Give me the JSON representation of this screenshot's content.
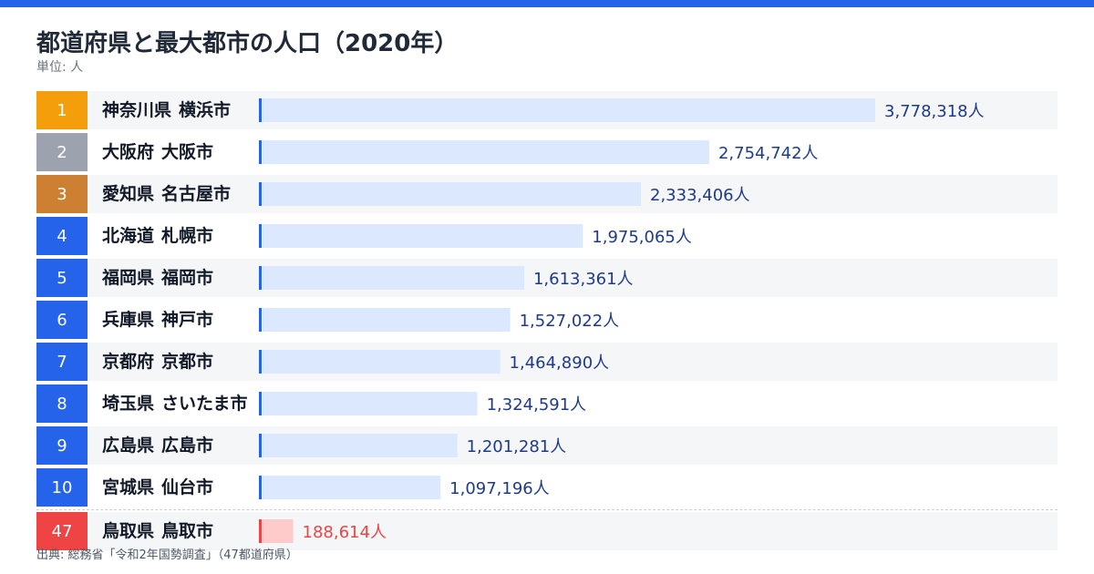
{
  "header": {
    "title": "都道府県と最大都市の人口（2020年）",
    "unit": "単位: 人"
  },
  "footer": {
    "source": "出典: 総務省「令和2年国勢調査」（47都道府県）"
  },
  "colors": {
    "accent": "#2563eb",
    "bar_fill": "#dbe8fd",
    "bar_fill_last": "#fecaca",
    "value_text": "#1e3a8a",
    "value_text_last": "#ef4444",
    "rank_gold": "#f59e0b",
    "rank_silver": "#9ca3af",
    "rank_bronze": "#cd7f32",
    "rank_default": "#2563eb",
    "rank_last": "#ef4444"
  },
  "chart_data": {
    "type": "bar",
    "orientation": "horizontal",
    "title": "都道府県と最大都市の人口（2020年）",
    "unit_label": "単位: 人",
    "value_suffix": "人",
    "xlim": [
      0,
      3778318
    ],
    "rows": [
      {
        "rank": "1",
        "prefecture": "神奈川県",
        "city": "横浜市",
        "value": 3778318
      },
      {
        "rank": "2",
        "prefecture": "大阪府",
        "city": "大阪市",
        "value": 2754742
      },
      {
        "rank": "3",
        "prefecture": "愛知県",
        "city": "名古屋市",
        "value": 2333406
      },
      {
        "rank": "4",
        "prefecture": "北海道",
        "city": "札幌市",
        "value": 1975065
      },
      {
        "rank": "5",
        "prefecture": "福岡県",
        "city": "福岡市",
        "value": 1613361
      },
      {
        "rank": "6",
        "prefecture": "兵庫県",
        "city": "神戸市",
        "value": 1527022
      },
      {
        "rank": "7",
        "prefecture": "京都府",
        "city": "京都市",
        "value": 1464890
      },
      {
        "rank": "8",
        "prefecture": "埼玉県",
        "city": "さいたま市",
        "value": 1324591
      },
      {
        "rank": "9",
        "prefecture": "広島県",
        "city": "広島市",
        "value": 1201281
      },
      {
        "rank": "10",
        "prefecture": "宮城県",
        "city": "仙台市",
        "value": 1097196
      },
      {
        "rank": "47",
        "prefecture": "鳥取県",
        "city": "鳥取市",
        "value": 188614
      }
    ]
  }
}
